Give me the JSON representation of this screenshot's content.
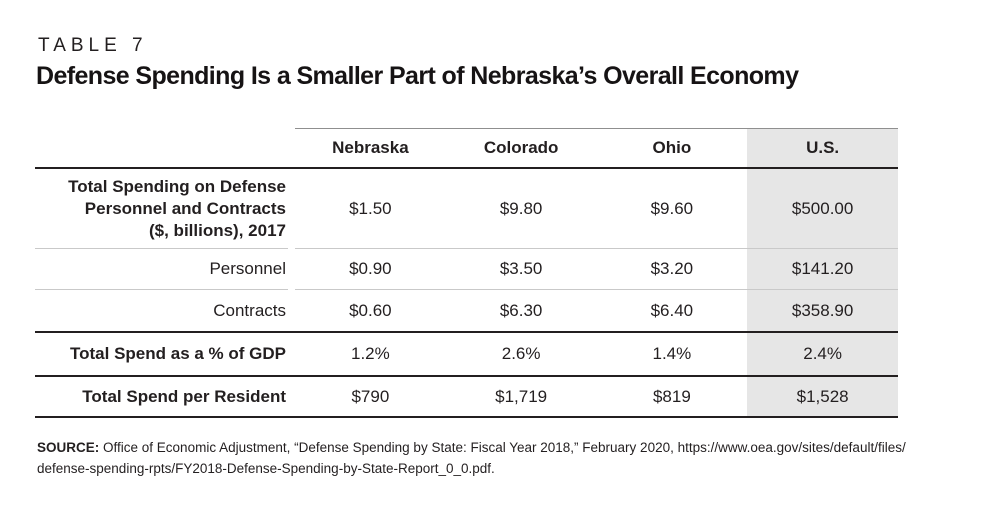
{
  "header": {
    "kicker": "TABLE 7",
    "title": "Defense Spending Is a Smaller Part of Nebraska’s Overall Economy"
  },
  "table": {
    "columns": [
      "Nebraska",
      "Colorado",
      "Ohio",
      "U.S."
    ],
    "highlight_column": "U.S.",
    "highlight_color": "#e6e6e6",
    "rows": [
      {
        "label_lines": [
          "Total Spending on Defense",
          "Personnel and Contracts",
          "($, billions), 2017"
        ],
        "bold": true,
        "values": [
          "$1.50",
          "$9.80",
          "$9.60",
          "$500.00"
        ]
      },
      {
        "label_lines": [
          "Personnel"
        ],
        "bold": false,
        "values": [
          "$0.90",
          "$3.50",
          "$3.20",
          "$141.20"
        ]
      },
      {
        "label_lines": [
          "Contracts"
        ],
        "bold": false,
        "values": [
          "$0.60",
          "$6.30",
          "$6.40",
          "$358.90"
        ]
      },
      {
        "label_lines": [
          "Total Spend as a % of GDP"
        ],
        "bold": true,
        "values": [
          "1.2%",
          "2.6%",
          "1.4%",
          "2.4%"
        ]
      },
      {
        "label_lines": [
          "Total Spend per Resident"
        ],
        "bold": true,
        "values": [
          "$790",
          "$1,719",
          "$819",
          "$1,528"
        ]
      }
    ]
  },
  "source": {
    "label": "SOURCE:",
    "line1": " Office of Economic Adjustment, “Defense Spending by State: Fiscal Year 2018,” February 2020, https://www.oea.gov/sites/default/files/",
    "line2": "defense-spending-rpts/FY2018-Defense-Spending-by-State-Report_0_0.pdf."
  }
}
